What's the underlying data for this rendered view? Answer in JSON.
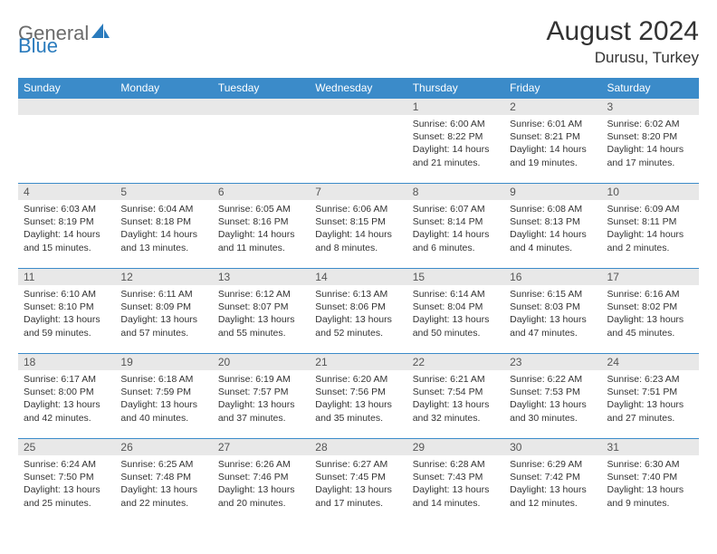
{
  "brand": {
    "text1": "General",
    "text2": "Blue",
    "grey": "#6b6b6b",
    "blue": "#2a7bbd"
  },
  "title": "August 2024",
  "location": "Durusu, Turkey",
  "colors": {
    "header_bg": "#3b8bc9",
    "header_text": "#ffffff",
    "daynum_bg": "#e8e8e8",
    "daynum_text": "#555555",
    "body_text": "#333333",
    "row_border": "#3b8bc9",
    "page_bg": "#ffffff"
  },
  "typography": {
    "title_fontsize": 30,
    "location_fontsize": 17,
    "weekday_fontsize": 12,
    "daynum_fontsize": 12,
    "body_fontsize": 10.5
  },
  "weekdays": [
    "Sunday",
    "Monday",
    "Tuesday",
    "Wednesday",
    "Thursday",
    "Friday",
    "Saturday"
  ],
  "weeks": [
    [
      {
        "n": "",
        "sunrise": "",
        "sunset": "",
        "daylight": ""
      },
      {
        "n": "",
        "sunrise": "",
        "sunset": "",
        "daylight": ""
      },
      {
        "n": "",
        "sunrise": "",
        "sunset": "",
        "daylight": ""
      },
      {
        "n": "",
        "sunrise": "",
        "sunset": "",
        "daylight": ""
      },
      {
        "n": "1",
        "sunrise": "Sunrise: 6:00 AM",
        "sunset": "Sunset: 8:22 PM",
        "daylight": "Daylight: 14 hours and 21 minutes."
      },
      {
        "n": "2",
        "sunrise": "Sunrise: 6:01 AM",
        "sunset": "Sunset: 8:21 PM",
        "daylight": "Daylight: 14 hours and 19 minutes."
      },
      {
        "n": "3",
        "sunrise": "Sunrise: 6:02 AM",
        "sunset": "Sunset: 8:20 PM",
        "daylight": "Daylight: 14 hours and 17 minutes."
      }
    ],
    [
      {
        "n": "4",
        "sunrise": "Sunrise: 6:03 AM",
        "sunset": "Sunset: 8:19 PM",
        "daylight": "Daylight: 14 hours and 15 minutes."
      },
      {
        "n": "5",
        "sunrise": "Sunrise: 6:04 AM",
        "sunset": "Sunset: 8:18 PM",
        "daylight": "Daylight: 14 hours and 13 minutes."
      },
      {
        "n": "6",
        "sunrise": "Sunrise: 6:05 AM",
        "sunset": "Sunset: 8:16 PM",
        "daylight": "Daylight: 14 hours and 11 minutes."
      },
      {
        "n": "7",
        "sunrise": "Sunrise: 6:06 AM",
        "sunset": "Sunset: 8:15 PM",
        "daylight": "Daylight: 14 hours and 8 minutes."
      },
      {
        "n": "8",
        "sunrise": "Sunrise: 6:07 AM",
        "sunset": "Sunset: 8:14 PM",
        "daylight": "Daylight: 14 hours and 6 minutes."
      },
      {
        "n": "9",
        "sunrise": "Sunrise: 6:08 AM",
        "sunset": "Sunset: 8:13 PM",
        "daylight": "Daylight: 14 hours and 4 minutes."
      },
      {
        "n": "10",
        "sunrise": "Sunrise: 6:09 AM",
        "sunset": "Sunset: 8:11 PM",
        "daylight": "Daylight: 14 hours and 2 minutes."
      }
    ],
    [
      {
        "n": "11",
        "sunrise": "Sunrise: 6:10 AM",
        "sunset": "Sunset: 8:10 PM",
        "daylight": "Daylight: 13 hours and 59 minutes."
      },
      {
        "n": "12",
        "sunrise": "Sunrise: 6:11 AM",
        "sunset": "Sunset: 8:09 PM",
        "daylight": "Daylight: 13 hours and 57 minutes."
      },
      {
        "n": "13",
        "sunrise": "Sunrise: 6:12 AM",
        "sunset": "Sunset: 8:07 PM",
        "daylight": "Daylight: 13 hours and 55 minutes."
      },
      {
        "n": "14",
        "sunrise": "Sunrise: 6:13 AM",
        "sunset": "Sunset: 8:06 PM",
        "daylight": "Daylight: 13 hours and 52 minutes."
      },
      {
        "n": "15",
        "sunrise": "Sunrise: 6:14 AM",
        "sunset": "Sunset: 8:04 PM",
        "daylight": "Daylight: 13 hours and 50 minutes."
      },
      {
        "n": "16",
        "sunrise": "Sunrise: 6:15 AM",
        "sunset": "Sunset: 8:03 PM",
        "daylight": "Daylight: 13 hours and 47 minutes."
      },
      {
        "n": "17",
        "sunrise": "Sunrise: 6:16 AM",
        "sunset": "Sunset: 8:02 PM",
        "daylight": "Daylight: 13 hours and 45 minutes."
      }
    ],
    [
      {
        "n": "18",
        "sunrise": "Sunrise: 6:17 AM",
        "sunset": "Sunset: 8:00 PM",
        "daylight": "Daylight: 13 hours and 42 minutes."
      },
      {
        "n": "19",
        "sunrise": "Sunrise: 6:18 AM",
        "sunset": "Sunset: 7:59 PM",
        "daylight": "Daylight: 13 hours and 40 minutes."
      },
      {
        "n": "20",
        "sunrise": "Sunrise: 6:19 AM",
        "sunset": "Sunset: 7:57 PM",
        "daylight": "Daylight: 13 hours and 37 minutes."
      },
      {
        "n": "21",
        "sunrise": "Sunrise: 6:20 AM",
        "sunset": "Sunset: 7:56 PM",
        "daylight": "Daylight: 13 hours and 35 minutes."
      },
      {
        "n": "22",
        "sunrise": "Sunrise: 6:21 AM",
        "sunset": "Sunset: 7:54 PM",
        "daylight": "Daylight: 13 hours and 32 minutes."
      },
      {
        "n": "23",
        "sunrise": "Sunrise: 6:22 AM",
        "sunset": "Sunset: 7:53 PM",
        "daylight": "Daylight: 13 hours and 30 minutes."
      },
      {
        "n": "24",
        "sunrise": "Sunrise: 6:23 AM",
        "sunset": "Sunset: 7:51 PM",
        "daylight": "Daylight: 13 hours and 27 minutes."
      }
    ],
    [
      {
        "n": "25",
        "sunrise": "Sunrise: 6:24 AM",
        "sunset": "Sunset: 7:50 PM",
        "daylight": "Daylight: 13 hours and 25 minutes."
      },
      {
        "n": "26",
        "sunrise": "Sunrise: 6:25 AM",
        "sunset": "Sunset: 7:48 PM",
        "daylight": "Daylight: 13 hours and 22 minutes."
      },
      {
        "n": "27",
        "sunrise": "Sunrise: 6:26 AM",
        "sunset": "Sunset: 7:46 PM",
        "daylight": "Daylight: 13 hours and 20 minutes."
      },
      {
        "n": "28",
        "sunrise": "Sunrise: 6:27 AM",
        "sunset": "Sunset: 7:45 PM",
        "daylight": "Daylight: 13 hours and 17 minutes."
      },
      {
        "n": "29",
        "sunrise": "Sunrise: 6:28 AM",
        "sunset": "Sunset: 7:43 PM",
        "daylight": "Daylight: 13 hours and 14 minutes."
      },
      {
        "n": "30",
        "sunrise": "Sunrise: 6:29 AM",
        "sunset": "Sunset: 7:42 PM",
        "daylight": "Daylight: 13 hours and 12 minutes."
      },
      {
        "n": "31",
        "sunrise": "Sunrise: 6:30 AM",
        "sunset": "Sunset: 7:40 PM",
        "daylight": "Daylight: 13 hours and 9 minutes."
      }
    ]
  ]
}
